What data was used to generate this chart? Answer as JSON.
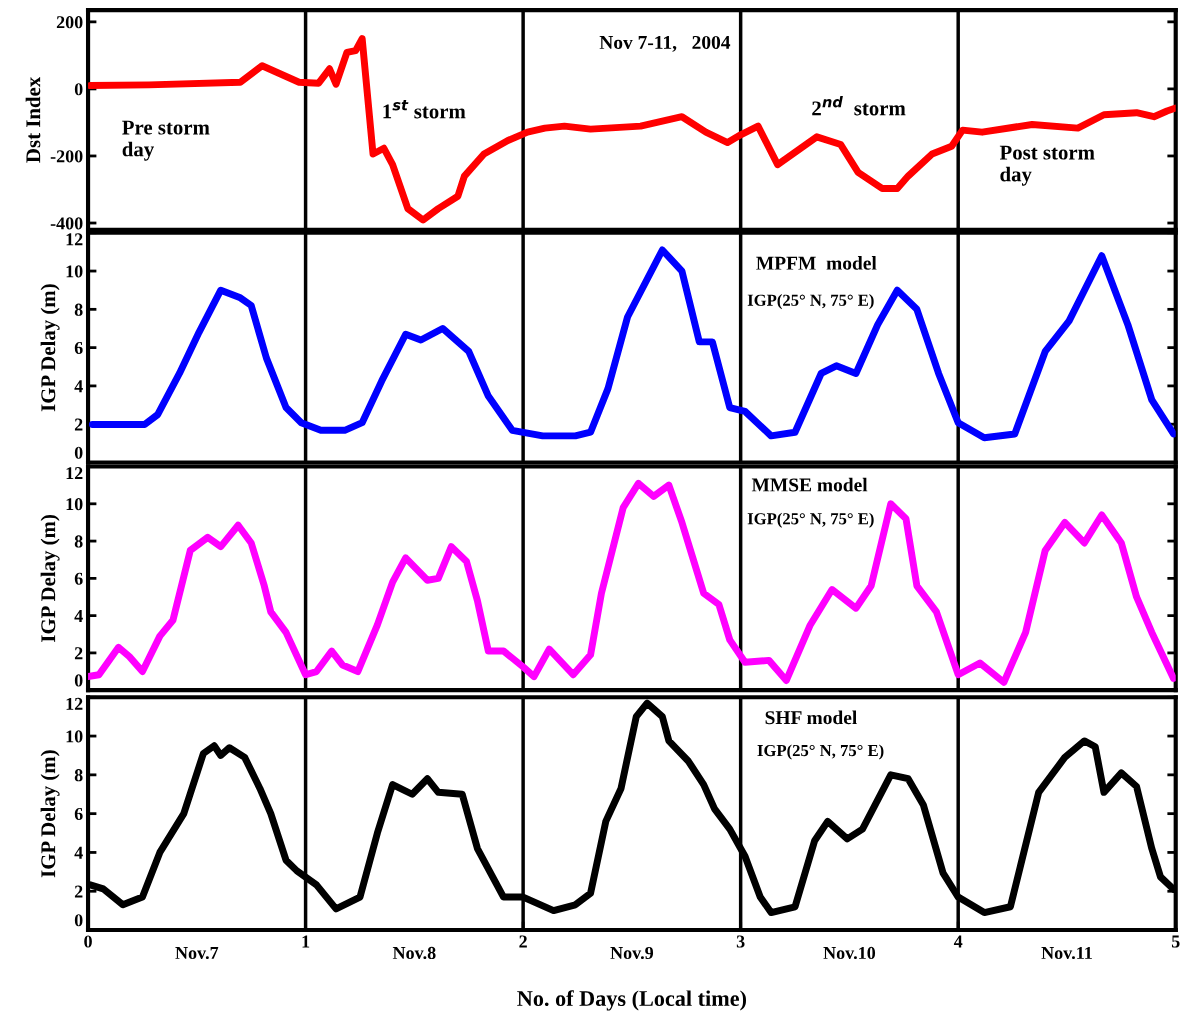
{
  "chart_data": [
    {
      "type": "line",
      "ylabel": "Dst Index",
      "xlim": [
        0,
        5
      ],
      "xticks": [
        0,
        1,
        2,
        3,
        4,
        5
      ],
      "ylim": [
        -420,
        235
      ],
      "yticks": [
        200,
        0,
        -200,
        -400
      ],
      "tick_labels": "y",
      "x": [
        0.01,
        0.28,
        0.7,
        0.8,
        0.97,
        1.06,
        1.11,
        1.14,
        1.19,
        1.23,
        1.26,
        1.31,
        1.36,
        1.4,
        1.47,
        1.54,
        1.61,
        1.7,
        1.73,
        1.82,
        1.93,
        2.02,
        2.1,
        2.19,
        2.31,
        2.54,
        2.73,
        2.84,
        2.94,
        3.0,
        3.08,
        3.17,
        3.35,
        3.46,
        3.54,
        3.65,
        3.72,
        3.77,
        3.88,
        3.97,
        4.02,
        4.11,
        4.34,
        4.55,
        4.67,
        4.82,
        4.9,
        4.96,
        5.0
      ],
      "series": [
        {
          "color": "#ff0000",
          "values": [
            10,
            12,
            20,
            69,
            20,
            17,
            60,
            14,
            109,
            114,
            150,
            -194,
            -177,
            -226,
            -357,
            -391,
            -357,
            -320,
            -260,
            -194,
            -154,
            -129,
            -117,
            -111,
            -120,
            -111,
            -83,
            -129,
            -160,
            -137,
            -111,
            -226,
            -143,
            -166,
            -249,
            -297,
            -297,
            -260,
            -194,
            -171,
            -123,
            -129,
            -106,
            -117,
            -77,
            -71,
            -83,
            -66,
            -57
          ]
        }
      ],
      "ref_lines": [
        {
          "axis": "x",
          "value": 1,
          "color": "#000000"
        },
        {
          "axis": "x",
          "value": 2,
          "color": "#000000"
        },
        {
          "axis": "x",
          "value": 3,
          "color": "#000000"
        },
        {
          "axis": "x",
          "value": 4,
          "color": "#000000"
        }
      ],
      "annotations": [
        "Pre storm\nday",
        "1$^{st}$ storm",
        "Nov 7-11,   2004",
        "2$^{nd}$  storm",
        "Post storm\nday"
      ]
    },
    {
      "type": "line",
      "ylabel": "IGP Delay (m)",
      "xlim": [
        0,
        5
      ],
      "xticks": [
        0,
        1,
        2,
        3,
        4,
        5
      ],
      "ylim": [
        0,
        12
      ],
      "yticks": [
        0,
        2,
        4,
        6,
        8,
        10,
        12
      ],
      "tick_labels": "y",
      "x": [
        0.02,
        0.26,
        0.32,
        0.42,
        0.51,
        0.61,
        0.7,
        0.75,
        0.82,
        0.91,
        0.98,
        1.07,
        1.18,
        1.26,
        1.35,
        1.46,
        1.53,
        1.63,
        1.75,
        1.84,
        1.95,
        2.09,
        2.24,
        2.31,
        2.39,
        2.48,
        2.64,
        2.73,
        2.81,
        2.87,
        2.95,
        3.02,
        3.14,
        3.25,
        3.37,
        3.44,
        3.53,
        3.63,
        3.72,
        3.81,
        3.91,
        4.0,
        4.12,
        4.26,
        4.4,
        4.51,
        4.66,
        4.78,
        4.89,
        4.99
      ],
      "series": [
        {
          "color": "#0000ff",
          "values": [
            1.98,
            1.98,
            2.5,
            4.65,
            6.8,
            9.0,
            8.6,
            8.2,
            5.45,
            2.87,
            2.08,
            1.68,
            1.68,
            2.08,
            4.26,
            6.7,
            6.4,
            7.0,
            5.8,
            3.47,
            1.68,
            1.39,
            1.39,
            1.58,
            3.86,
            7.6,
            11.1,
            10.0,
            6.3,
            6.3,
            2.87,
            2.67,
            1.39,
            1.58,
            4.65,
            5.05,
            4.65,
            7.2,
            9.0,
            8.0,
            4.65,
            2.08,
            1.29,
            1.49,
            5.8,
            7.4,
            10.8,
            7.2,
            3.27,
            1.49
          ]
        }
      ],
      "ref_lines": [
        {
          "axis": "x",
          "value": 1,
          "color": "#000000"
        },
        {
          "axis": "x",
          "value": 2,
          "color": "#000000"
        },
        {
          "axis": "x",
          "value": 3,
          "color": "#000000"
        },
        {
          "axis": "x",
          "value": 4,
          "color": "#000000"
        }
      ],
      "annotations": [
        "MPFM  model",
        "IGP(25° N, 75° E)"
      ]
    },
    {
      "type": "line",
      "ylabel": "IGP Delay (m)",
      "xlim": [
        0,
        5
      ],
      "xticks": [
        0,
        1,
        2,
        3,
        4,
        5
      ],
      "ylim": [
        0,
        12
      ],
      "yticks": [
        0,
        2,
        4,
        6,
        8,
        10,
        12
      ],
      "tick_labels": "y",
      "x": [
        0.0,
        0.05,
        0.14,
        0.19,
        0.25,
        0.33,
        0.39,
        0.47,
        0.55,
        0.61,
        0.69,
        0.75,
        0.81,
        0.84,
        0.91,
        1.0,
        1.05,
        1.12,
        1.17,
        1.24,
        1.33,
        1.4,
        1.46,
        1.56,
        1.61,
        1.67,
        1.74,
        1.79,
        1.84,
        1.91,
        2.0,
        2.05,
        2.12,
        2.23,
        2.31,
        2.36,
        2.46,
        2.53,
        2.6,
        2.67,
        2.73,
        2.78,
        2.83,
        2.9,
        2.95,
        3.02,
        3.13,
        3.21,
        3.32,
        3.42,
        3.53,
        3.6,
        3.69,
        3.76,
        3.81,
        3.9,
        4.0,
        4.1,
        4.21,
        4.31,
        4.4,
        4.49,
        4.58,
        4.66,
        4.75,
        4.82,
        4.89,
        4.99
      ],
      "series": [
        {
          "color": "#ff00ff",
          "values": [
            0.73,
            0.83,
            2.3,
            1.8,
            1.0,
            2.9,
            3.75,
            7.5,
            8.2,
            7.7,
            8.85,
            7.9,
            5.6,
            4.2,
            3.1,
            0.83,
            1.0,
            2.1,
            1.35,
            1.0,
            3.5,
            5.8,
            7.1,
            5.9,
            6.0,
            7.7,
            6.9,
            4.8,
            2.1,
            2.1,
            1.25,
            0.73,
            2.2,
            0.83,
            1.9,
            5.2,
            9.8,
            11.1,
            10.4,
            11.0,
            9.0,
            7.1,
            5.2,
            4.6,
            2.7,
            1.5,
            1.6,
            0.52,
            3.5,
            5.4,
            4.4,
            5.6,
            10.0,
            9.2,
            5.6,
            4.2,
            0.83,
            1.46,
            0.42,
            3.1,
            7.5,
            9.0,
            7.9,
            9.4,
            7.9,
            5.0,
            3.1,
            0.63
          ]
        }
      ],
      "ref_lines": [
        {
          "axis": "x",
          "value": 1,
          "color": "#000000"
        },
        {
          "axis": "x",
          "value": 2,
          "color": "#000000"
        },
        {
          "axis": "x",
          "value": 3,
          "color": "#000000"
        },
        {
          "axis": "x",
          "value": 4,
          "color": "#000000"
        }
      ],
      "annotations": [
        "MMSE model",
        "IGP(25° N, 75° E)"
      ]
    },
    {
      "type": "line",
      "ylabel": "IGP Delay (m)",
      "xlabel": "No. of Days (Local time)",
      "xlim": [
        0,
        5
      ],
      "xticks": [
        0,
        1,
        2,
        3,
        4,
        5
      ],
      "ylim": [
        0,
        12
      ],
      "yticks": [
        0,
        2,
        4,
        6,
        8,
        10,
        12
      ],
      "x": [
        0.01,
        0.07,
        0.16,
        0.25,
        0.33,
        0.44,
        0.53,
        0.58,
        0.61,
        0.65,
        0.72,
        0.79,
        0.84,
        0.91,
        0.96,
        1.05,
        1.14,
        1.25,
        1.33,
        1.4,
        1.49,
        1.56,
        1.61,
        1.72,
        1.79,
        1.91,
        2.0,
        2.14,
        2.24,
        2.31,
        2.38,
        2.45,
        2.52,
        2.57,
        2.64,
        2.67,
        2.76,
        2.83,
        2.88,
        2.95,
        3.02,
        3.09,
        3.14,
        3.25,
        3.34,
        3.4,
        3.49,
        3.56,
        3.69,
        3.77,
        3.84,
        3.93,
        4.0,
        4.12,
        4.24,
        4.37,
        4.49,
        4.58,
        4.63,
        4.67,
        4.75,
        4.82,
        4.89,
        4.93,
        4.99
      ],
      "series": [
        {
          "color": "#000000",
          "values": [
            2.33,
            2.12,
            1.3,
            1.7,
            4.0,
            6.0,
            9.1,
            9.5,
            9.0,
            9.4,
            8.9,
            7.3,
            6.0,
            3.6,
            3.05,
            2.33,
            1.09,
            1.7,
            5.0,
            7.5,
            7.0,
            7.8,
            7.1,
            7.0,
            4.2,
            1.7,
            1.7,
            1.0,
            1.3,
            1.9,
            5.6,
            7.3,
            11.0,
            11.7,
            11.0,
            9.75,
            8.7,
            7.5,
            6.25,
            5.2,
            3.8,
            1.7,
            0.9,
            1.2,
            4.6,
            5.6,
            4.7,
            5.2,
            8.0,
            7.8,
            6.45,
            2.95,
            1.7,
            0.9,
            1.2,
            7.1,
            8.9,
            9.75,
            9.45,
            7.1,
            8.1,
            7.4,
            4.2,
            2.74,
            2.1
          ]
        }
      ],
      "ref_lines": [
        {
          "axis": "x",
          "value": 1,
          "color": "#000000"
        },
        {
          "axis": "x",
          "value": 2,
          "color": "#000000"
        },
        {
          "axis": "x",
          "value": 3,
          "color": "#000000"
        },
        {
          "axis": "x",
          "value": 4,
          "color": "#000000"
        }
      ],
      "annotations": [
        "SHF model",
        "IGP(25° N, 75° E)",
        "Nov.7",
        "Nov.8",
        "Nov.9",
        "Nov.10",
        "Nov.11"
      ]
    }
  ]
}
